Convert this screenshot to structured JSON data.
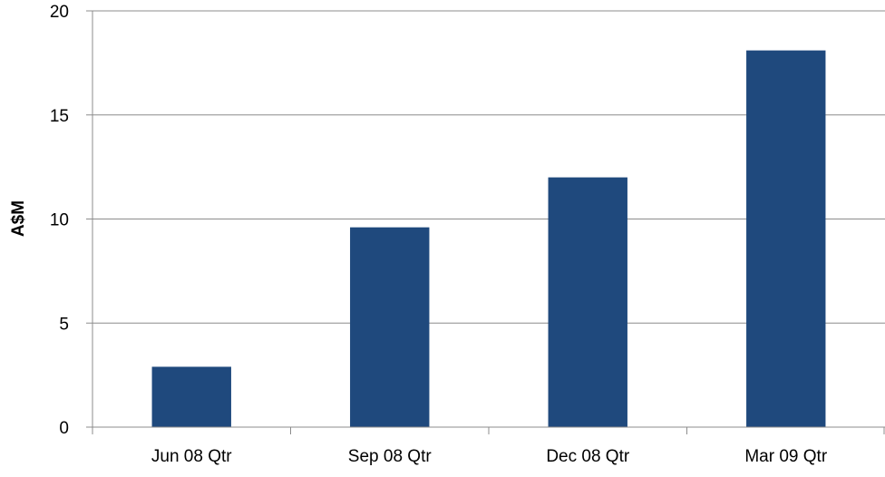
{
  "chart_data": {
    "type": "bar",
    "title": "",
    "xlabel": "",
    "ylabel": "A$M",
    "categories": [
      "Jun 08 Qtr",
      "Sep 08 Qtr",
      "Dec 08 Qtr",
      "Mar 09 Qtr"
    ],
    "values": [
      2.9,
      9.6,
      12.0,
      18.1
    ],
    "ylim": [
      0,
      20
    ],
    "yticks": [
      0,
      5,
      10,
      15,
      20
    ],
    "ytick_labels": [
      "0",
      "5",
      "10",
      "15",
      "20"
    ],
    "grid": true,
    "legend": "none",
    "bar_color": "#1F497D",
    "grid_color": "#8C8C8C",
    "axis_color": "#8C8C8C"
  }
}
